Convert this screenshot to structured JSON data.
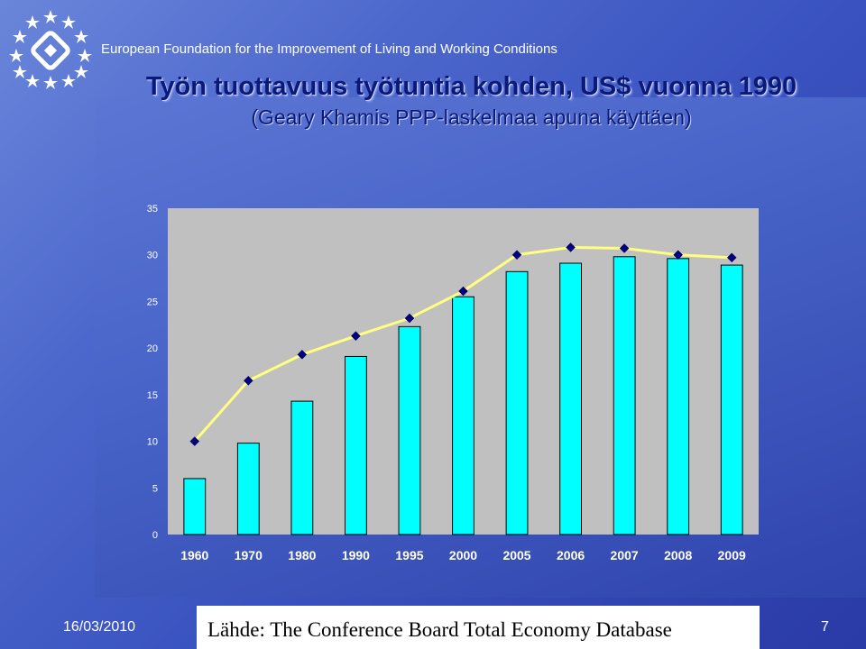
{
  "header": {
    "organization": "European Foundation for the Improvement of Living and Working Conditions"
  },
  "title": "Työn tuottavuus työtuntia kohden, US$ vuonna 1990",
  "subtitle": "(Geary Khamis PPP-laskelmaa apuna käyttäen)",
  "colors": {
    "bar_fill": "#00ffff",
    "line": "#ffff80",
    "marker": "#000080",
    "plot_bg": "#c0c0c0",
    "title": "#0a1a7a"
  },
  "chart_data": {
    "type": "bar",
    "categories": [
      "1960",
      "1970",
      "1980",
      "1990",
      "1995",
      "2000",
      "2005",
      "2006",
      "2007",
      "2008",
      "2009"
    ],
    "series": [
      {
        "type": "bar",
        "values": [
          6.0,
          9.8,
          14.3,
          19.1,
          22.3,
          25.5,
          28.2,
          29.1,
          29.8,
          29.6,
          28.9
        ]
      },
      {
        "type": "line",
        "values": [
          10.0,
          16.5,
          19.3,
          21.3,
          23.2,
          26.1,
          30.0,
          30.8,
          30.7,
          30.0,
          29.7
        ]
      }
    ],
    "ylim": [
      0,
      35
    ],
    "yticks": [
      "0",
      "5",
      "10",
      "15",
      "20",
      "25",
      "30",
      "35"
    ],
    "grid": false,
    "legend": "none"
  },
  "footer": {
    "date": "16/03/2010",
    "source": "Lähde: The Conference Board Total Economy Database",
    "page": "7"
  }
}
